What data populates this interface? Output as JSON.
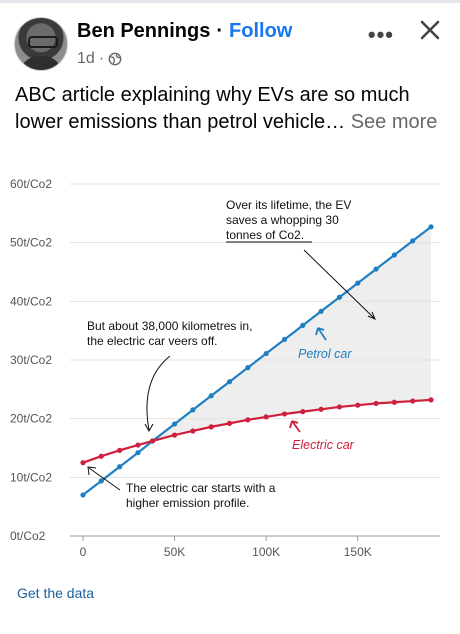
{
  "post": {
    "author": "Ben Pennings",
    "follow_label": "Follow",
    "time": "1d",
    "more_icon": "more-horizontal-icon",
    "close_icon": "close-icon",
    "text": "ABC article explaining why EVs are so much lower emissions than petrol vehicle…",
    "see_more": "See more",
    "get_data": "Get the data"
  },
  "colors": {
    "follow": "#1877f2",
    "petrol": "#1f7fc0",
    "electric": "#d01f3c",
    "link": "#1f5f9e"
  },
  "chart_data": {
    "type": "line",
    "x": [
      0,
      10000,
      20000,
      30000,
      38000,
      50000,
      60000,
      70000,
      80000,
      90000,
      100000,
      110000,
      120000,
      130000,
      140000,
      150000,
      160000,
      170000,
      180000,
      190000
    ],
    "series": [
      {
        "name": "Petrol car",
        "values": [
          7,
          9.4,
          11.8,
          14.2,
          16.2,
          19.1,
          21.5,
          23.9,
          26.3,
          28.7,
          31.1,
          33.5,
          35.9,
          38.3,
          40.7,
          43.1,
          45.5,
          47.9,
          50.3,
          52.7
        ]
      },
      {
        "name": "Electric car",
        "values": [
          12.5,
          13.6,
          14.6,
          15.5,
          16.2,
          17.2,
          17.9,
          18.6,
          19.2,
          19.8,
          20.3,
          20.8,
          21.2,
          21.6,
          22.0,
          22.3,
          22.6,
          22.8,
          23.0,
          23.2
        ]
      }
    ],
    "yticks": [
      "0t/Co2",
      "10t/Co2",
      "20t/Co2",
      "30t/Co2",
      "40t/Co2",
      "50t/Co2",
      "60t/Co2"
    ],
    "xticks": [
      "0",
      "50K",
      "100K",
      "150K"
    ],
    "ylim": [
      0,
      60
    ],
    "xlim": [
      0,
      190000
    ],
    "annotations": [
      "Over its lifetime, the EV saves a whopping 30 tonnes of Co2.",
      "But about 38,000 kilometres in, the electric car veers off.",
      "The electric car starts with a higher emission profile."
    ],
    "grid": true
  }
}
